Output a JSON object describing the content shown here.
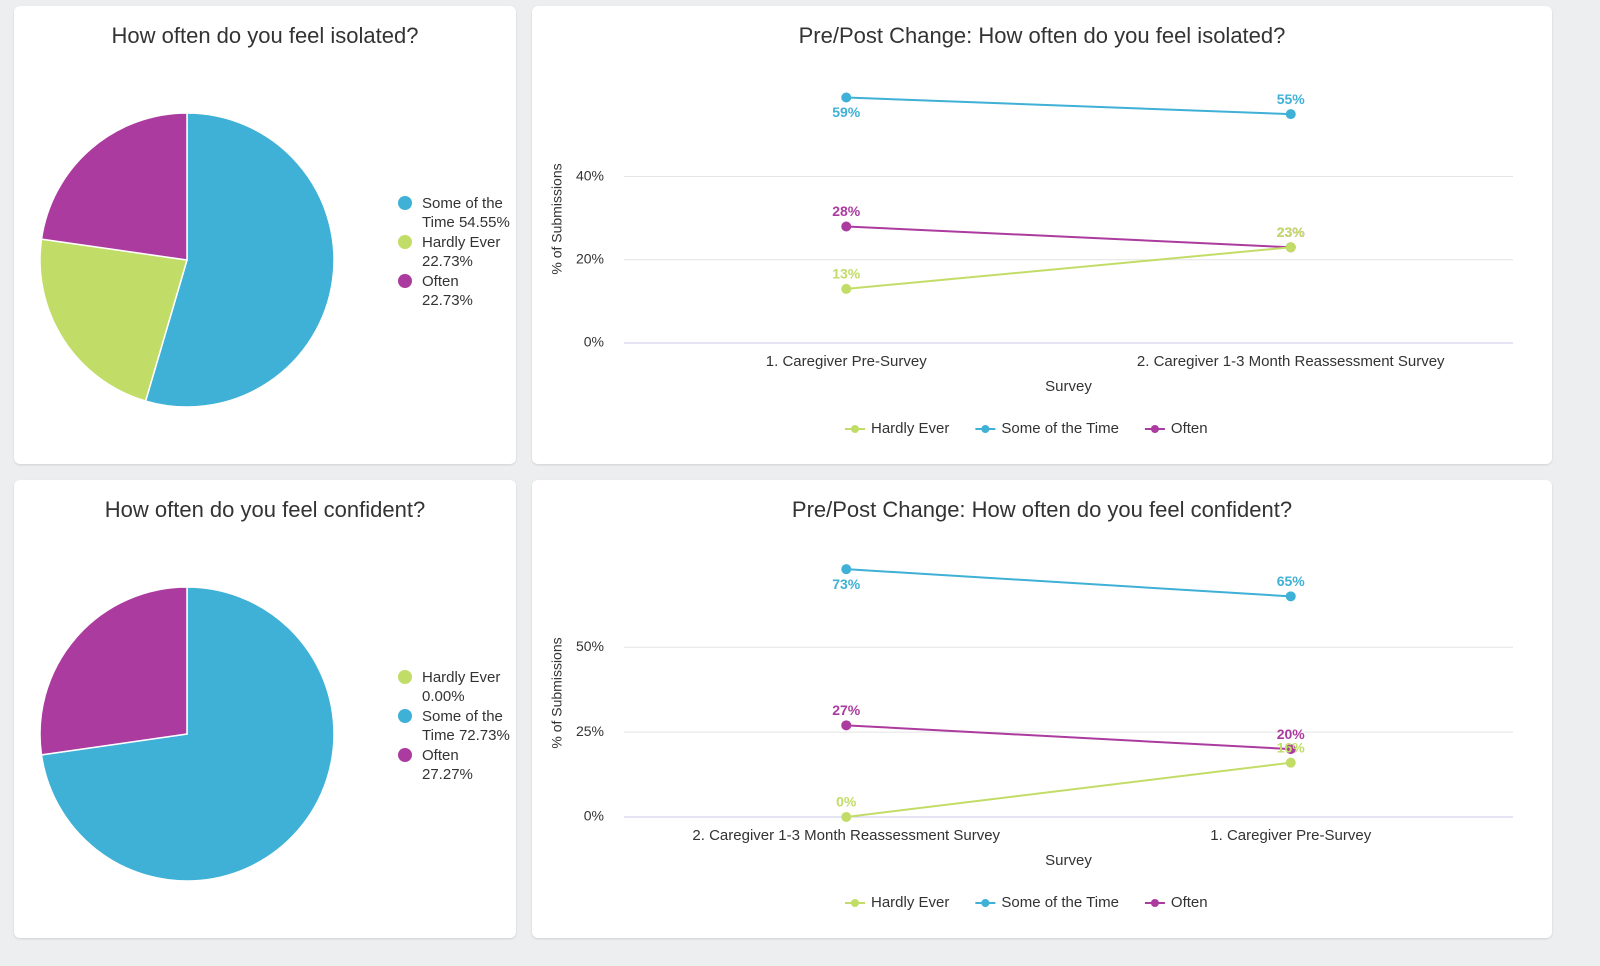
{
  "chart_data": [
    {
      "type": "pie",
      "title": "How often do you feel isolated?",
      "categories": [
        "Some of the Time",
        "Hardly Ever",
        "Often"
      ],
      "values": [
        54.55,
        22.73,
        22.73
      ],
      "value_labels": [
        "54.55%",
        "22.73%",
        "22.73%"
      ],
      "colors": [
        "#3fb0d6",
        "#c2dd67",
        "#ab3b9e"
      ],
      "legend": "right"
    },
    {
      "type": "line",
      "title": "Pre/Post Change: How often do you feel isolated?",
      "categories": [
        "1. Caregiver Pre-Survey",
        "2. Caregiver 1-3 Month Reassessment Survey"
      ],
      "x_label": "Survey",
      "y_label": "% of Submissions",
      "ylim": [
        0,
        62
      ],
      "yticks": [
        {
          "value": 0,
          "label": "0%"
        },
        {
          "value": 20,
          "label": "20%"
        },
        {
          "value": 40,
          "label": "40%"
        }
      ],
      "grid": true,
      "legend": "bottom",
      "series": [
        {
          "name": "Often",
          "color": "#ab3b9e",
          "values": [
            28,
            23
          ],
          "value_labels": [
            "28%",
            "23%"
          ]
        },
        {
          "name": "Hardly Ever",
          "color": "#c2dd67",
          "values": [
            13,
            23
          ],
          "value_labels": [
            "13%",
            "23%"
          ]
        },
        {
          "name": "Some of the Time",
          "color": "#3fb0d6",
          "values": [
            59,
            55
          ],
          "value_labels": [
            "59%",
            "55%"
          ]
        }
      ]
    },
    {
      "type": "pie",
      "title": "How often do you feel confident?",
      "categories": [
        "Hardly Ever",
        "Some of the Time",
        "Often"
      ],
      "values": [
        0,
        72.73,
        27.27
      ],
      "value_labels": [
        "0.00%",
        "72.73%",
        "27.27%"
      ],
      "colors": [
        "#c2dd67",
        "#3fb0d6",
        "#ab3b9e"
      ],
      "legend": "right"
    },
    {
      "type": "line",
      "title": "Pre/Post Change: How often do you feel confident?",
      "categories": [
        "2. Caregiver 1-3 Month Reassessment Survey",
        "1. Caregiver Pre-Survey"
      ],
      "x_label": "Survey",
      "y_label": "% of Submissions",
      "ylim": [
        0,
        76
      ],
      "yticks": [
        {
          "value": 0,
          "label": "0%"
        },
        {
          "value": 25,
          "label": "25%"
        },
        {
          "value": 50,
          "label": "50%"
        }
      ],
      "grid": true,
      "legend": "bottom",
      "series": [
        {
          "name": "Often",
          "color": "#ab3b9e",
          "values": [
            27,
            20
          ],
          "value_labels": [
            "27%",
            "20%"
          ]
        },
        {
          "name": "Hardly Ever",
          "color": "#c2dd67",
          "values": [
            0,
            16
          ],
          "value_labels": [
            "0%",
            "16%"
          ]
        },
        {
          "name": "Some of the Time",
          "color": "#3fb0d6",
          "values": [
            73,
            65
          ],
          "value_labels": [
            "73%",
            "65%"
          ]
        }
      ]
    }
  ]
}
